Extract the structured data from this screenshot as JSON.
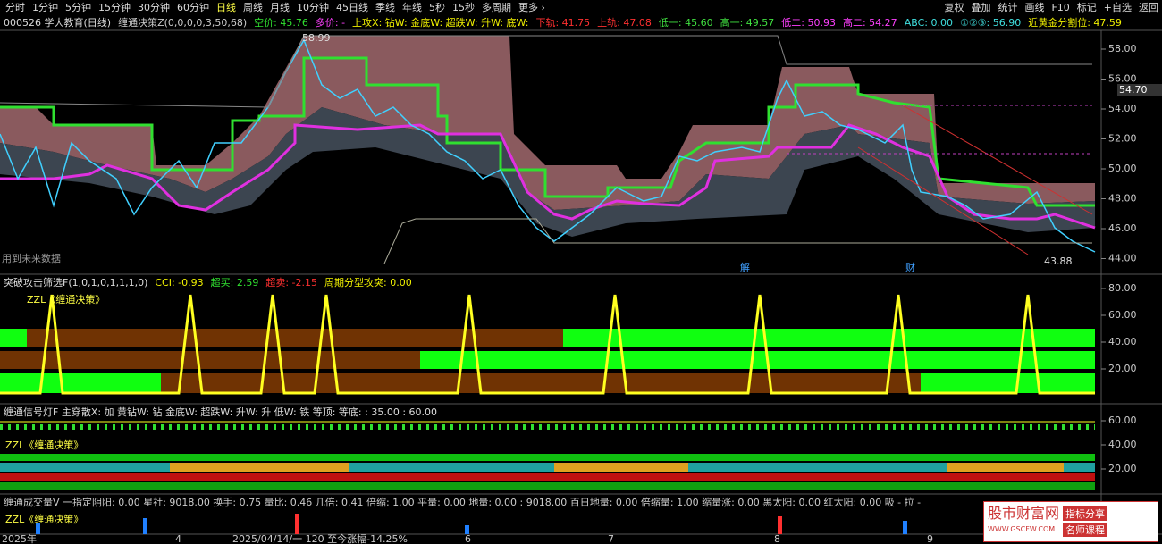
{
  "toolbar": {
    "periods": [
      "分时",
      "1分钟",
      "5分钟",
      "15分钟",
      "30分钟",
      "60分钟",
      "日线",
      "周线",
      "月线",
      "10分钟",
      "45日线",
      "季线",
      "年线",
      "5秒",
      "15秒",
      "多周期",
      "更多 ›"
    ],
    "active": "日线",
    "tools": [
      "复权",
      "叠加",
      "统计",
      "画线",
      "F10",
      "标记",
      "+自选",
      "返回"
    ]
  },
  "main": {
    "stock": "000526 学大教育(日线)",
    "indicator": "缠通决策Z(0,0,0,0,3,50,68)",
    "fields": [
      {
        "text": "空价: 45.76",
        "color": "#30e030"
      },
      {
        "text": "多价: -",
        "color": "#ff40ff"
      },
      {
        "text": "上攻X: 钻W: 金底W: 超跌W: 升W: 底W:",
        "color": "#f0f000"
      },
      {
        "text": "下轨: 41.75",
        "color": "#ff3030"
      },
      {
        "text": "上轨: 47.08",
        "color": "#ff3030"
      },
      {
        "text": "低一: 45.60",
        "color": "#40e040"
      },
      {
        "text": "高一: 49.57",
        "color": "#40e040"
      },
      {
        "text": "低二: 50.93",
        "color": "#ff40ff"
      },
      {
        "text": "高二: 54.27",
        "color": "#ff40ff"
      },
      {
        "text": "ABC: 0.00",
        "color": "#40e0e0"
      },
      {
        "text": "①②③: 56.90",
        "color": "#40e0e0"
      },
      {
        "text": "近黄金分割位: 47.59",
        "color": "#f0f000"
      }
    ],
    "price_ticks": [
      "58.00",
      "56.00",
      "54.00",
      "52.00",
      "50.00",
      "48.00",
      "46.00",
      "44.00"
    ],
    "last_price": "54.70",
    "high_label": "58.99",
    "low_label": "43.88",
    "note": "用到未来数据",
    "markers": [
      "解",
      "财"
    ]
  },
  "pane2": {
    "title": "突破攻击筛选F(1,0,1,0,1,1,1,0)",
    "fields": [
      {
        "text": "CCI: -0.93",
        "color": "#f0f000"
      },
      {
        "text": "超买: 2.59",
        "color": "#30e030"
      },
      {
        "text": "超卖: -2.15",
        "color": "#ff3030"
      },
      {
        "text": "周期分型攻突: 0.00",
        "color": "#f0f000"
      }
    ],
    "sub": "ZZL《缠通决策》",
    "ticks": [
      "80.00",
      "60.00",
      "40.00",
      "20.00"
    ]
  },
  "pane3": {
    "title": "缠通信号灯F 主穿散X: 加 黄钻W: 钻 金底W: 超跌W: 升W: 升 低W: 铁 等顶: 等底: : 35.00 : 60.00",
    "sub": "ZZL《缠通决策》",
    "ticks": [
      "60.00",
      "40.00",
      "20.00"
    ]
  },
  "pane4": {
    "title": "缠通成交量V 一指定阴阳: 0.00 星社: 9018.00 换手: 0.75 量比: 0.46 几倍: 0.41 倍缩: 1.00 平量: 0.00 地量: 0.00 : 9018.00 百日地量: 0.00 倍缩量: 1.00 缩量涨: 0.00 黑太阳: 0.00 红太阳: 0.00 吸 - 拉 -",
    "sub": "ZZL《缠通决策》"
  },
  "date_axis": [
    "2025年",
    "4",
    "2025/04/14/一 120 至今涨幅-14.25%",
    "6",
    "7",
    "8",
    "9"
  ],
  "watermark": {
    "name": "股市财富网",
    "url": "WWW.GSCFW.COM",
    "tags": [
      "指标分享",
      "名师课程"
    ]
  }
}
